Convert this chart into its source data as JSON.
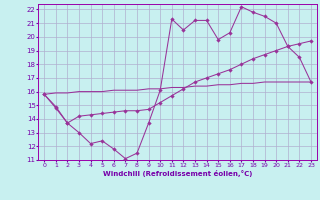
{
  "xlabel": "Windchill (Refroidissement éolien,°C)",
  "bg_color": "#c8f0f0",
  "grid_color": "#b0b0d0",
  "line_color": "#993399",
  "xlim": [
    -0.5,
    23.5
  ],
  "ylim": [
    11,
    22.4
  ],
  "xticks": [
    0,
    1,
    2,
    3,
    4,
    5,
    6,
    7,
    8,
    9,
    10,
    11,
    12,
    13,
    14,
    15,
    16,
    17,
    18,
    19,
    20,
    21,
    22,
    23
  ],
  "yticks": [
    11,
    12,
    13,
    14,
    15,
    16,
    17,
    18,
    19,
    20,
    21,
    22
  ],
  "line1_x": [
    0,
    1,
    2,
    3,
    4,
    5,
    6,
    7,
    8,
    9,
    10,
    11,
    12,
    13,
    14,
    15,
    16,
    17,
    18,
    19,
    20,
    21,
    22,
    23
  ],
  "line1_y": [
    15.8,
    14.8,
    13.7,
    13.0,
    12.2,
    12.4,
    11.8,
    11.1,
    11.5,
    13.7,
    16.1,
    21.3,
    20.5,
    21.2,
    21.2,
    19.8,
    20.3,
    22.2,
    21.8,
    21.5,
    21.0,
    19.3,
    18.5,
    16.7
  ],
  "line2_x": [
    0,
    1,
    2,
    3,
    4,
    5,
    6,
    7,
    8,
    9,
    10,
    11,
    12,
    13,
    14,
    15,
    16,
    17,
    18,
    19,
    20,
    21,
    22,
    23
  ],
  "line2_y": [
    15.8,
    14.9,
    13.7,
    14.2,
    14.3,
    14.4,
    14.5,
    14.6,
    14.6,
    14.7,
    15.2,
    15.7,
    16.2,
    16.7,
    17.0,
    17.3,
    17.6,
    18.0,
    18.4,
    18.7,
    19.0,
    19.3,
    19.5,
    19.7
  ],
  "line3_x": [
    0,
    1,
    2,
    3,
    4,
    5,
    6,
    7,
    8,
    9,
    10,
    11,
    12,
    13,
    14,
    15,
    16,
    17,
    18,
    19,
    20,
    21,
    22,
    23
  ],
  "line3_y": [
    15.8,
    15.9,
    15.9,
    16.0,
    16.0,
    16.0,
    16.1,
    16.1,
    16.1,
    16.2,
    16.2,
    16.3,
    16.3,
    16.4,
    16.4,
    16.5,
    16.5,
    16.6,
    16.6,
    16.7,
    16.7,
    16.7,
    16.7,
    16.7
  ]
}
